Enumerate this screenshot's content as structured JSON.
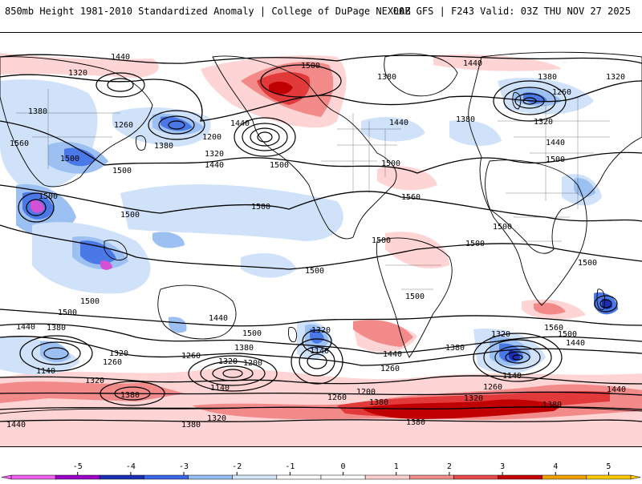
{
  "header": {
    "left_title": "850mb Height 1981-2010 Standardized Anomaly | College of DuPage NEXLAB",
    "right_title": "00Z GFS | F243 Valid: 03Z THU NOV 27 2025"
  },
  "contour_labels": [
    {
      "id": "c1",
      "text": "1440"
    },
    {
      "id": "c2",
      "text": "1320"
    },
    {
      "id": "c3",
      "text": "1380"
    },
    {
      "id": "c4",
      "text": "1260"
    },
    {
      "id": "c5",
      "text": "1560"
    },
    {
      "id": "c6",
      "text": "1500"
    },
    {
      "id": "c7",
      "text": "1500"
    },
    {
      "id": "c8",
      "text": "1380"
    },
    {
      "id": "c9",
      "text": "1320"
    },
    {
      "id": "c10",
      "text": "1200"
    },
    {
      "id": "c11",
      "text": "1440"
    },
    {
      "id": "c12",
      "text": "1500"
    },
    {
      "id": "c13",
      "text": "1500"
    },
    {
      "id": "c14",
      "text": "1500"
    },
    {
      "id": "c15",
      "text": "1440"
    },
    {
      "id": "c16",
      "text": "1500"
    },
    {
      "id": "c17",
      "text": "1380"
    },
    {
      "id": "c18",
      "text": "1440"
    },
    {
      "id": "c19",
      "text": "1440"
    },
    {
      "id": "c20",
      "text": "1500"
    },
    {
      "id": "c21",
      "text": "1560"
    },
    {
      "id": "c22",
      "text": "1380"
    },
    {
      "id": "c23",
      "text": "1320"
    },
    {
      "id": "c24",
      "text": "1260"
    },
    {
      "id": "c25",
      "text": "1380"
    },
    {
      "id": "c26",
      "text": "1440"
    },
    {
      "id": "c27",
      "text": "1500"
    },
    {
      "id": "c28",
      "text": "1320"
    },
    {
      "id": "c29",
      "text": "1500"
    },
    {
      "id": "c30",
      "text": "1500"
    },
    {
      "id": "c31",
      "text": "1500"
    },
    {
      "id": "c32",
      "text": "1500"
    },
    {
      "id": "c33",
      "text": "1500"
    },
    {
      "id": "c34",
      "text": "1500"
    },
    {
      "id": "c35",
      "text": "1500"
    },
    {
      "id": "c36",
      "text": "1500"
    },
    {
      "id": "c37",
      "text": "1500"
    },
    {
      "id": "c38",
      "text": "1440"
    },
    {
      "id": "c39",
      "text": "1380"
    },
    {
      "id": "c40",
      "text": "1320"
    },
    {
      "id": "c41",
      "text": "1260"
    },
    {
      "id": "c42",
      "text": "1140"
    },
    {
      "id": "c43",
      "text": "1440"
    },
    {
      "id": "c44",
      "text": "1500"
    },
    {
      "id": "c45",
      "text": "1380"
    },
    {
      "id": "c46",
      "text": "1320"
    },
    {
      "id": "c47",
      "text": "1260"
    },
    {
      "id": "c48",
      "text": "1200"
    },
    {
      "id": "c49",
      "text": "1140"
    },
    {
      "id": "c50",
      "text": "1320"
    },
    {
      "id": "c51",
      "text": "1140"
    },
    {
      "id": "c52",
      "text": "1440"
    },
    {
      "id": "c53",
      "text": "1260"
    },
    {
      "id": "c54",
      "text": "1380"
    },
    {
      "id": "c55",
      "text": "1320"
    },
    {
      "id": "c56",
      "text": "1140"
    },
    {
      "id": "c57",
      "text": "1560"
    },
    {
      "id": "c58",
      "text": "1500"
    },
    {
      "id": "c59",
      "text": "1440"
    },
    {
      "id": "c60",
      "text": "1260"
    },
    {
      "id": "c61",
      "text": "1200"
    },
    {
      "id": "c62",
      "text": "1260"
    },
    {
      "id": "c63",
      "text": "1380"
    },
    {
      "id": "c64",
      "text": "1320"
    },
    {
      "id": "c65",
      "text": "1380"
    },
    {
      "id": "c66",
      "text": "1320"
    },
    {
      "id": "c67",
      "text": "1380"
    },
    {
      "id": "c68",
      "text": "1440"
    },
    {
      "id": "c69",
      "text": "1320"
    },
    {
      "id": "c70",
      "text": "1380"
    },
    {
      "id": "c71",
      "text": "1440"
    },
    {
      "id": "c72",
      "text": "1380"
    }
  ],
  "colorbar": {
    "tick_labels": [
      "-5",
      "-4",
      "-3",
      "-2",
      "-1",
      "0",
      "1",
      "2",
      "3",
      "4",
      "5"
    ],
    "bins": [
      {
        "color": "#f060f0"
      },
      {
        "color": "#9a00c8"
      },
      {
        "color": "#1c2fb4"
      },
      {
        "color": "#3c66e8"
      },
      {
        "color": "#96bff5"
      },
      {
        "color": "#d4e6fa"
      },
      {
        "color": "#ffffff"
      },
      {
        "color": "#ffffff"
      },
      {
        "color": "#ffd0d0"
      },
      {
        "color": "#f58c8c"
      },
      {
        "color": "#e84a4a"
      },
      {
        "color": "#c80000"
      },
      {
        "color": "#f0a000"
      },
      {
        "color": "#ffc800"
      }
    ]
  },
  "colors": {
    "neg_light": "#cfe2fa",
    "neg_mid": "#9cc0f2",
    "neg_strong": "#4a78e6",
    "neg_deep": "#1c2fb4",
    "neg_extreme": "#d450d4",
    "pos_light": "#ffd4d4",
    "pos_mid": "#f28a8a",
    "pos_strong": "#e23a3a",
    "pos_deep": "#c00000"
  }
}
